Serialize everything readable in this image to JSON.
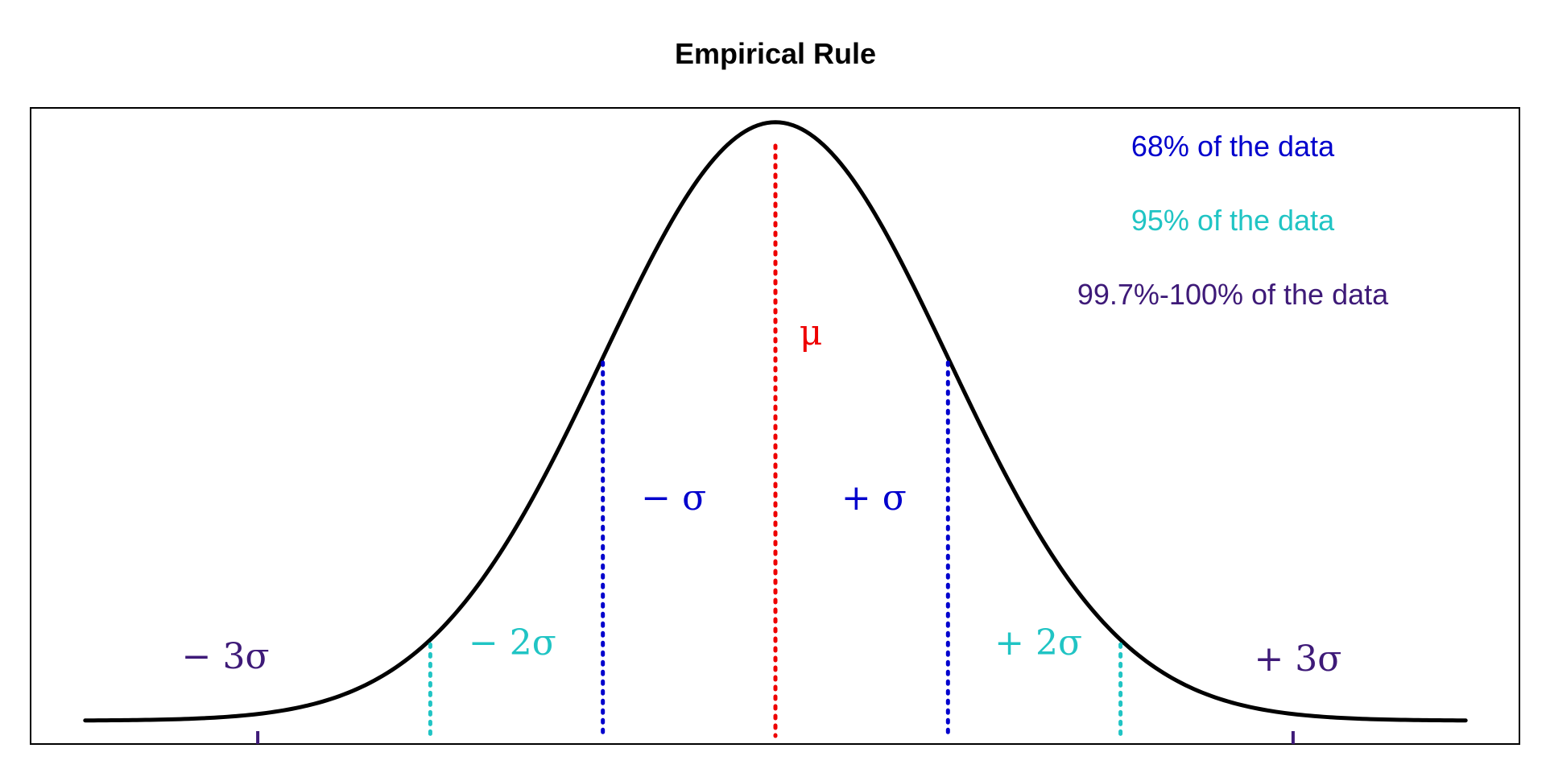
{
  "chart_data": {
    "type": "line",
    "title": "Empirical Rule",
    "xlabel": "",
    "ylabel": "",
    "xlim": [
      -4,
      4
    ],
    "grid": false,
    "legend_position": "top-right",
    "curve": {
      "name": "",
      "x": [
        -4.0,
        -3.6,
        -3.2,
        -3.0,
        -2.8,
        -2.4,
        -2.0,
        -1.6,
        -1.2,
        -1.0,
        -0.8,
        -0.4,
        0.0,
        0.4,
        0.8,
        1.0,
        1.2,
        1.6,
        2.0,
        2.4,
        2.8,
        3.0,
        3.2,
        3.6,
        4.0
      ],
      "y": [
        0.0001,
        0.0006,
        0.0024,
        0.0044,
        0.0079,
        0.0224,
        0.054,
        0.1109,
        0.1942,
        0.242,
        0.2897,
        0.3683,
        0.3989,
        0.3683,
        0.2897,
        0.242,
        0.1942,
        0.1109,
        0.054,
        0.0224,
        0.0079,
        0.0044,
        0.0024,
        0.0006,
        0.0001
      ],
      "color": "#000000"
    },
    "lines": [
      {
        "label": "μ",
        "x": 0,
        "color": "#ee0000"
      },
      {
        "label": "− σ",
        "x": -1,
        "color": "#0000cd"
      },
      {
        "label": "+ σ",
        "x": 1,
        "color": "#0000cd"
      },
      {
        "label": "− 2σ",
        "x": -2,
        "color": "#20c4c4"
      },
      {
        "label": "+ 2σ",
        "x": 2,
        "color": "#20c4c4"
      },
      {
        "label": "− 3σ",
        "x": -3,
        "color": "#3e1a78"
      },
      {
        "label": "+ 3σ",
        "x": 3,
        "color": "#3e1a78"
      }
    ],
    "legend": [
      {
        "text": "68% of the data",
        "color": "#0000cd"
      },
      {
        "text": "95% of the data",
        "color": "#20c4c4"
      },
      {
        "text": "99.7%-100% of the data",
        "color": "#3e1a78"
      }
    ]
  }
}
